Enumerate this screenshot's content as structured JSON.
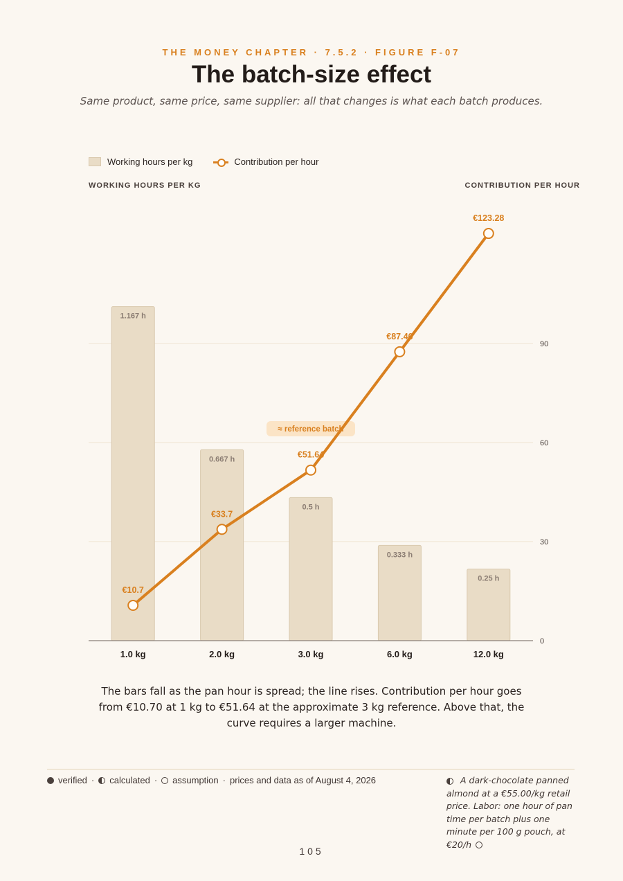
{
  "header": {
    "eyebrow": "THE MONEY CHAPTER · 7.5.2 · FIGURE F-07",
    "title": "The batch-size effect",
    "subtitle": "Same product, same price, same supplier: all that changes is what each batch produces."
  },
  "legend": {
    "bars": "Working hours per kg",
    "line": "Contribution per hour"
  },
  "chart_data": {
    "type": "bar",
    "categories": [
      "1.0 kg",
      "2.0 kg",
      "3.0 kg",
      "6.0 kg",
      "12.0 kg"
    ],
    "series": [
      {
        "name": "Working hours per kg",
        "type": "bar",
        "values": [
          1.167,
          0.667,
          0.5,
          0.333,
          0.25
        ],
        "labels": [
          "1.167 h",
          "0.667 h",
          "0.5 h",
          "0.333 h",
          "0.25 h"
        ]
      },
      {
        "name": "Contribution per hour",
        "type": "line",
        "values": [
          10.7,
          33.7,
          51.64,
          87.46,
          123.28
        ],
        "labels": [
          "€10.7",
          "€33.7",
          "€51.64",
          "€87.46",
          "€123.28"
        ]
      }
    ],
    "left_axis_title": "WORKING HOURS PER KG",
    "right_axis_title": "CONTRIBUTION PER HOUR",
    "right_ticks": [
      0,
      30,
      60,
      90
    ],
    "right_ylim": [
      0,
      130
    ],
    "left_ylim": [
      0,
      1.5
    ],
    "annotation": {
      "text": "≈ reference batch",
      "category": "3.0 kg"
    },
    "grid": true,
    "legend_position": "top-left"
  },
  "colors": {
    "accent": "#d9801f",
    "bar": "#e9dcc6",
    "bar_border": "#d9c9ae",
    "background": "#fbf7f1"
  },
  "caption": "The bars fall as the pan hour is spread; the line rises. Contribution per hour goes from €10.70 at 1 kg to €51.64 at the approximate 3 kg reference. Above that, the curve requires a larger machine.",
  "footer": {
    "verified": "verified",
    "calculated": "calculated",
    "assumption": "assumption",
    "as_of": "prices and data as of August 4, 2026",
    "note": "A dark-chocolate panned almond at a €55.00/kg retail price. Labor: one hour of pan time per batch plus one minute per 100 g pouch, at €20/h",
    "page": "105"
  }
}
